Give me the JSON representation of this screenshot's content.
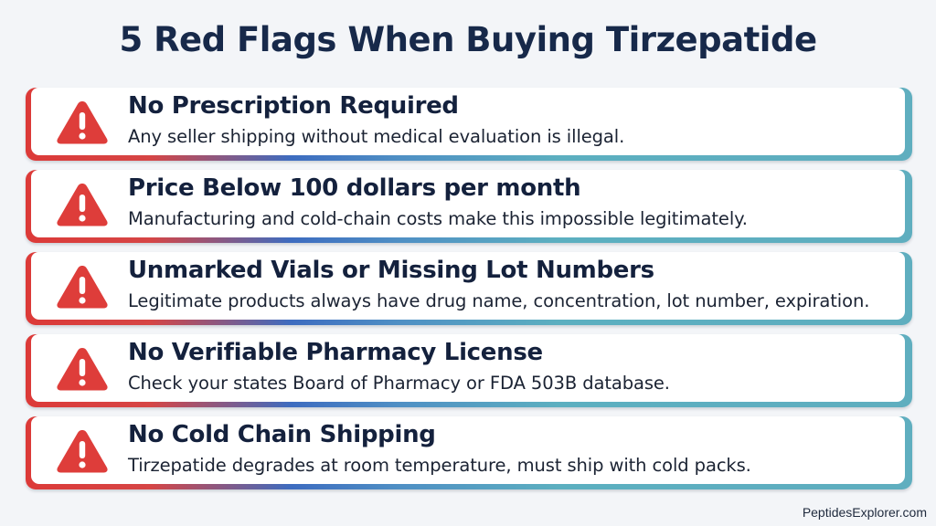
{
  "title": "5 Red Flags When Buying Tirzepatide",
  "theme": {
    "warning_red": "#de3d3a",
    "title_navy": "#17294a",
    "gradient_blue": "#3d6cc0",
    "gradient_teal": "#5faebf"
  },
  "icon": "warning-triangle-icon",
  "flags": [
    {
      "title": "No Prescription Required",
      "description": "Any seller shipping without medical evaluation is illegal."
    },
    {
      "title": "Price Below 100 dollars per month",
      "description": "Manufacturing and cold-chain costs make this impossible legitimately."
    },
    {
      "title": "Unmarked Vials or Missing Lot Numbers",
      "description": "Legitimate products always have drug name, concentration, lot number, expiration."
    },
    {
      "title": "No Verifiable Pharmacy License",
      "description": "Check your states Board of Pharmacy or FDA 503B database."
    },
    {
      "title": "No Cold Chain Shipping",
      "description": "Tirzepatide degrades at room temperature, must ship with cold packs."
    }
  ],
  "footer": {
    "site": "PeptidesExplorer.com"
  }
}
